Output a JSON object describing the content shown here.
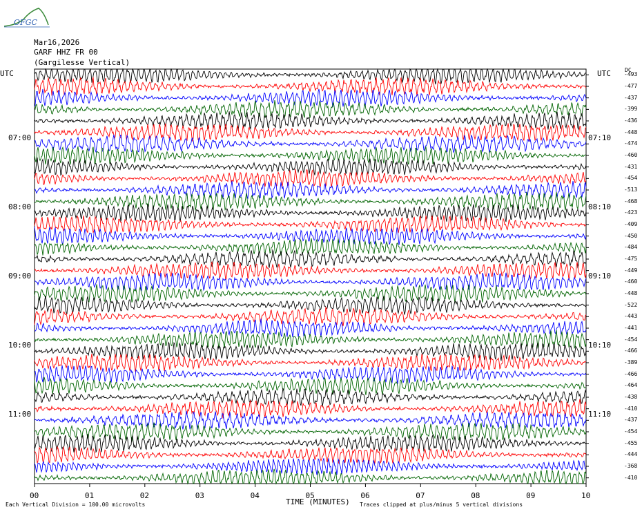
{
  "header": {
    "date": "Mar16,2026",
    "station": "GARF HHZ FR 00",
    "site": "(Gargilesse Vertical)",
    "logo_text": "OFGC"
  },
  "labels": {
    "utc_left": "UTC",
    "utc_right": "UTC",
    "dc": "DC"
  },
  "footer": {
    "scale": "Each Vertical Division =  100.00 microvolts",
    "clip": "Traces clipped at plus/minus 5 vertical divisions",
    "xlabel": "TIME (MINUTES)"
  },
  "colors": {
    "cycle": [
      "#000000",
      "#ff0000",
      "#0000ff",
      "#006400"
    ]
  },
  "chart_data": {
    "type": "line",
    "subtype": "helicorder",
    "xlabel": "TIME (MINUTES)",
    "xlim": [
      0,
      10
    ],
    "x_ticks": [
      "00",
      "01",
      "02",
      "03",
      "04",
      "05",
      "06",
      "07",
      "08",
      "09",
      "10"
    ],
    "left_hour_labels": [
      "07:00",
      "08:00",
      "09:00",
      "10:00",
      "11:00"
    ],
    "right_hour_labels": [
      "07:10",
      "08:10",
      "09:10",
      "10:10",
      "11:10"
    ],
    "row_count": 36,
    "row_offsets_dc": [
      -493,
      -477,
      -437,
      -399,
      -436,
      -448,
      -474,
      -460,
      -431,
      -454,
      -513,
      -468,
      -423,
      -409,
      -450,
      -484,
      -475,
      -449,
      -460,
      -448,
      -522,
      -443,
      -441,
      -454,
      -466,
      -389,
      -466,
      -464,
      -438,
      -410,
      -437,
      -454,
      -455,
      -444,
      -368,
      -410
    ]
  }
}
